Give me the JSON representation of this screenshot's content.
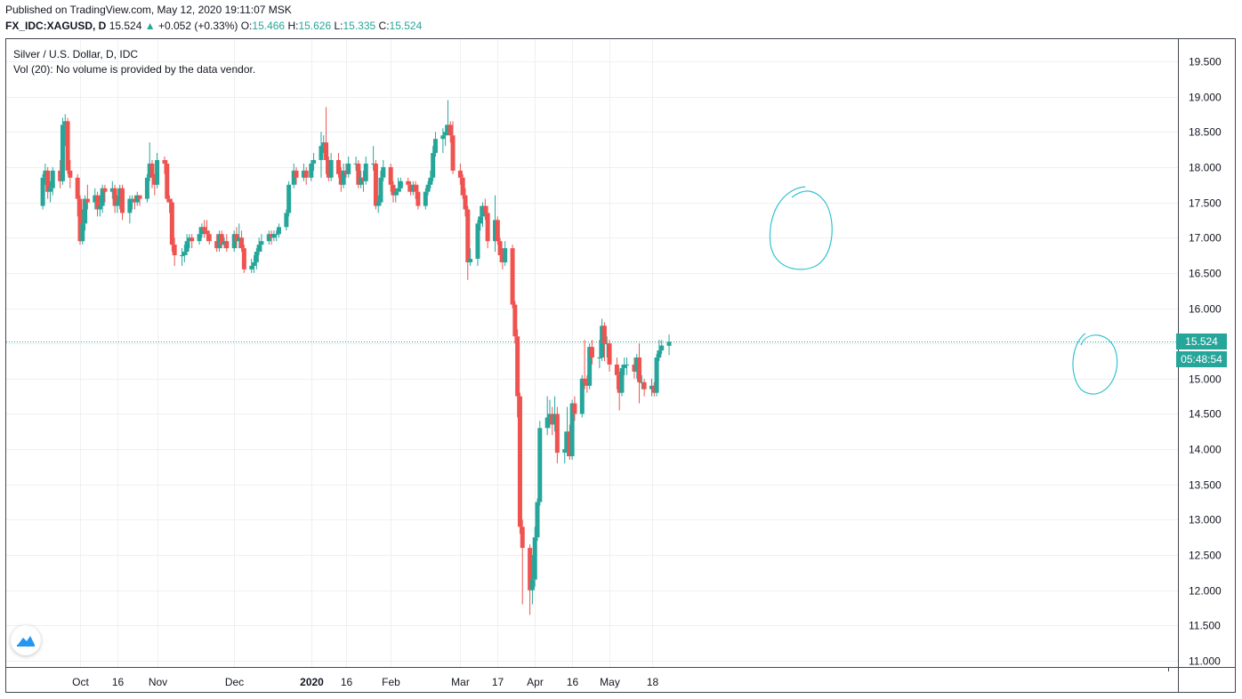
{
  "header": {
    "published": "Published on TradingView.com, May 12, 2020 19:11:07 MSK",
    "symbol": "FX_IDC:XAGUSD, D",
    "last": "15.524",
    "arrow": "▲",
    "change": "+0.052 (+0.33%)",
    "o_label": "O:",
    "o": "15.466",
    "h_label": "H:",
    "h": "15.626",
    "l_label": "L:",
    "l": "15.335",
    "c_label": "C:",
    "c": "15.524"
  },
  "legend": {
    "title": "Silver / U.S. Dollar, D, IDC",
    "volume_note": "Vol (20): No volume is provided by the data vendor."
  },
  "price_label": "15.524",
  "countdown_label": "05:48:54",
  "colors": {
    "up": "#26a69a",
    "down": "#ef5350",
    "grid": "#eef0f3",
    "annotation": "#34c3d0"
  },
  "chart_data": {
    "type": "candlestick",
    "title": "Silver / U.S. Dollar, D, IDC",
    "ylim": [
      11.0,
      19.7
    ],
    "y_ticks": [
      "19.500",
      "19.000",
      "18.500",
      "18.000",
      "17.500",
      "17.000",
      "16.500",
      "16.000",
      "15.500",
      "15.000",
      "14.500",
      "14.000",
      "13.500",
      "13.000",
      "12.500",
      "12.000",
      "11.500",
      "11.000"
    ],
    "x_ticks": [
      {
        "label": "Oct",
        "date": "2019-10-01",
        "bold": false
      },
      {
        "label": "16",
        "date": "2019-10-16",
        "bold": false
      },
      {
        "label": "Nov",
        "date": "2019-11-01",
        "bold": false
      },
      {
        "label": "Dec",
        "date": "2019-12-02",
        "bold": false
      },
      {
        "label": "2020",
        "date": "2020-01-02",
        "bold": true
      },
      {
        "label": "16",
        "date": "2020-01-16",
        "bold": false
      },
      {
        "label": "Feb",
        "date": "2020-02-03",
        "bold": false
      },
      {
        "label": "Mar",
        "date": "2020-03-02",
        "bold": false
      },
      {
        "label": "17",
        "date": "2020-03-17",
        "bold": false
      },
      {
        "label": "Apr",
        "date": "2020-04-01",
        "bold": false
      },
      {
        "label": "16",
        "date": "2020-04-16",
        "bold": false
      },
      {
        "label": "May",
        "date": "2020-05-01",
        "bold": false
      },
      {
        "label": "18",
        "date": "2020-05-18",
        "bold": false
      }
    ],
    "last_price": 15.524,
    "candles": [
      [
        "2019-09-16",
        17.45,
        17.85,
        17.4,
        17.9
      ],
      [
        "2019-09-17",
        17.85,
        17.95,
        17.75,
        18.05
      ],
      [
        "2019-09-18",
        17.95,
        17.65,
        17.55,
        18.0
      ],
      [
        "2019-09-19",
        17.65,
        17.7,
        17.5,
        17.8
      ],
      [
        "2019-09-20",
        17.7,
        17.95,
        17.6,
        18.0
      ],
      [
        "2019-09-23",
        17.95,
        17.8,
        17.7,
        18.1
      ],
      [
        "2019-09-24",
        17.8,
        18.6,
        17.75,
        18.7
      ],
      [
        "2019-09-25",
        18.6,
        18.65,
        18.3,
        18.75
      ],
      [
        "2019-09-26",
        18.65,
        17.95,
        17.9,
        18.7
      ],
      [
        "2019-09-27",
        17.95,
        17.85,
        17.7,
        18.1
      ],
      [
        "2019-09-30",
        17.85,
        17.55,
        17.3,
        17.9
      ],
      [
        "2019-10-01",
        17.55,
        16.95,
        16.9,
        17.6
      ],
      [
        "2019-10-02",
        16.95,
        17.2,
        16.9,
        17.4
      ],
      [
        "2019-10-03",
        17.2,
        17.55,
        17.1,
        17.6
      ],
      [
        "2019-10-04",
        17.55,
        17.5,
        17.4,
        17.75
      ],
      [
        "2019-10-07",
        17.5,
        17.6,
        17.4,
        17.7
      ],
      [
        "2019-10-08",
        17.6,
        17.4,
        17.3,
        17.65
      ],
      [
        "2019-10-09",
        17.4,
        17.45,
        17.3,
        17.6
      ],
      [
        "2019-10-10",
        17.45,
        17.7,
        17.35,
        17.75
      ],
      [
        "2019-10-11",
        17.7,
        17.65,
        17.5,
        17.75
      ],
      [
        "2019-10-14",
        17.65,
        17.7,
        17.55,
        17.8
      ],
      [
        "2019-10-15",
        17.7,
        17.45,
        17.35,
        17.75
      ],
      [
        "2019-10-16",
        17.45,
        17.5,
        17.35,
        17.6
      ],
      [
        "2019-10-17",
        17.5,
        17.7,
        17.4,
        17.75
      ],
      [
        "2019-10-18",
        17.7,
        17.35,
        17.25,
        17.75
      ],
      [
        "2019-10-21",
        17.35,
        17.55,
        17.2,
        17.6
      ],
      [
        "2019-10-22",
        17.55,
        17.55,
        17.4,
        17.6
      ],
      [
        "2019-10-23",
        17.55,
        17.5,
        17.4,
        17.6
      ],
      [
        "2019-10-24",
        17.5,
        17.6,
        17.45,
        17.65
      ],
      [
        "2019-10-25",
        17.6,
        17.55,
        17.45,
        17.6
      ],
      [
        "2019-10-28",
        17.55,
        17.85,
        17.5,
        17.9
      ],
      [
        "2019-10-29",
        17.85,
        18.05,
        17.8,
        18.35
      ],
      [
        "2019-10-30",
        18.05,
        17.85,
        17.7,
        18.1
      ],
      [
        "2019-10-31",
        17.85,
        17.75,
        17.6,
        17.9
      ],
      [
        "2019-11-01",
        17.75,
        18.1,
        17.7,
        18.2
      ],
      [
        "2019-11-04",
        18.1,
        18.05,
        17.9,
        18.15
      ],
      [
        "2019-11-05",
        18.05,
        17.55,
        17.5,
        18.1
      ],
      [
        "2019-11-06",
        17.55,
        17.5,
        17.35,
        17.6
      ],
      [
        "2019-11-07",
        17.5,
        16.9,
        16.8,
        17.55
      ],
      [
        "2019-11-08",
        16.9,
        16.75,
        16.6,
        17.0
      ],
      [
        "2019-11-11",
        16.75,
        16.75,
        16.6,
        16.85
      ],
      [
        "2019-11-12",
        16.75,
        16.8,
        16.65,
        16.9
      ],
      [
        "2019-11-13",
        16.8,
        16.95,
        16.75,
        17.05
      ],
      [
        "2019-11-14",
        16.95,
        17.0,
        16.85,
        17.05
      ],
      [
        "2019-11-15",
        17.0,
        16.95,
        16.85,
        17.05
      ],
      [
        "2019-11-18",
        16.95,
        17.05,
        16.9,
        17.15
      ],
      [
        "2019-11-19",
        17.05,
        17.15,
        17.0,
        17.2
      ],
      [
        "2019-11-20",
        17.15,
        17.1,
        17.0,
        17.25
      ],
      [
        "2019-11-21",
        17.1,
        17.05,
        16.95,
        17.25
      ],
      [
        "2019-11-22",
        17.05,
        16.95,
        16.9,
        17.1
      ],
      [
        "2019-11-25",
        16.95,
        16.85,
        16.8,
        17.05
      ],
      [
        "2019-11-26",
        16.85,
        17.05,
        16.8,
        17.1
      ],
      [
        "2019-11-27",
        17.05,
        16.9,
        16.85,
        17.1
      ],
      [
        "2019-11-28",
        16.9,
        16.95,
        16.85,
        17.0
      ],
      [
        "2019-11-29",
        16.95,
        16.85,
        16.8,
        17.05
      ],
      [
        "2019-12-02",
        16.85,
        17.05,
        16.8,
        17.1
      ],
      [
        "2019-12-03",
        17.05,
        16.95,
        16.85,
        17.15
      ],
      [
        "2019-12-04",
        16.95,
        17.0,
        16.85,
        17.2
      ],
      [
        "2019-12-05",
        17.0,
        16.85,
        16.8,
        17.1
      ],
      [
        "2019-12-06",
        16.85,
        16.55,
        16.5,
        16.9
      ],
      [
        "2019-12-09",
        16.55,
        16.6,
        16.5,
        16.7
      ],
      [
        "2019-12-10",
        16.6,
        16.65,
        16.5,
        16.75
      ],
      [
        "2019-12-11",
        16.65,
        16.8,
        16.55,
        16.85
      ],
      [
        "2019-12-12",
        16.8,
        16.9,
        16.75,
        17.0
      ],
      [
        "2019-12-13",
        16.9,
        16.95,
        16.8,
        17.05
      ],
      [
        "2019-12-16",
        16.95,
        17.05,
        16.9,
        17.1
      ],
      [
        "2019-12-17",
        17.05,
        17.0,
        16.9,
        17.1
      ],
      [
        "2019-12-18",
        17.0,
        17.05,
        16.95,
        17.1
      ],
      [
        "2019-12-19",
        17.05,
        17.05,
        16.95,
        17.1
      ],
      [
        "2019-12-20",
        17.05,
        17.15,
        17.0,
        17.2
      ],
      [
        "2019-12-23",
        17.15,
        17.35,
        17.1,
        17.4
      ],
      [
        "2019-12-24",
        17.35,
        17.75,
        17.3,
        17.8
      ],
      [
        "2019-12-26",
        17.75,
        17.95,
        17.7,
        18.05
      ],
      [
        "2019-12-27",
        17.95,
        17.85,
        17.75,
        18.0
      ],
      [
        "2019-12-30",
        17.85,
        17.95,
        17.8,
        18.05
      ],
      [
        "2019-12-31",
        17.95,
        17.85,
        17.75,
        18.0
      ],
      [
        "2020-01-02",
        17.85,
        18.05,
        17.8,
        18.1
      ],
      [
        "2020-01-03",
        18.05,
        18.1,
        17.95,
        18.2
      ],
      [
        "2020-01-06",
        18.1,
        18.3,
        17.85,
        18.5
      ],
      [
        "2020-01-07",
        18.3,
        18.35,
        18.2,
        18.45
      ],
      [
        "2020-01-08",
        18.35,
        18.1,
        17.9,
        18.85
      ],
      [
        "2020-01-09",
        18.1,
        17.85,
        17.8,
        18.15
      ],
      [
        "2020-01-10",
        17.85,
        18.1,
        17.8,
        18.2
      ],
      [
        "2020-01-13",
        18.1,
        17.9,
        17.85,
        18.2
      ],
      [
        "2020-01-14",
        17.9,
        17.75,
        17.65,
        18.0
      ],
      [
        "2020-01-15",
        17.75,
        17.95,
        17.7,
        18.05
      ],
      [
        "2020-01-16",
        17.95,
        17.9,
        17.85,
        18.05
      ],
      [
        "2020-01-17",
        17.9,
        18.05,
        17.85,
        18.15
      ],
      [
        "2020-01-20",
        18.05,
        18.05,
        17.95,
        18.15
      ],
      [
        "2020-01-21",
        18.05,
        17.75,
        17.7,
        18.1
      ],
      [
        "2020-01-22",
        17.75,
        17.85,
        17.7,
        17.95
      ],
      [
        "2020-01-23",
        17.85,
        17.8,
        17.65,
        17.95
      ],
      [
        "2020-01-24",
        17.8,
        18.05,
        17.75,
        18.15
      ],
      [
        "2020-01-27",
        18.05,
        18.05,
        17.95,
        18.3
      ],
      [
        "2020-01-28",
        18.05,
        17.45,
        17.4,
        18.1
      ],
      [
        "2020-01-29",
        17.45,
        17.5,
        17.35,
        17.6
      ],
      [
        "2020-01-30",
        17.5,
        17.85,
        17.45,
        17.95
      ],
      [
        "2020-01-31",
        17.85,
        18.0,
        17.8,
        18.1
      ],
      [
        "2020-02-03",
        18.0,
        17.75,
        17.65,
        18.05
      ],
      [
        "2020-02-04",
        17.75,
        17.6,
        17.5,
        17.8
      ],
      [
        "2020-02-05",
        17.6,
        17.65,
        17.5,
        17.7
      ],
      [
        "2020-02-06",
        17.65,
        17.7,
        17.6,
        17.85
      ],
      [
        "2020-02-07",
        17.7,
        17.8,
        17.65,
        17.85
      ],
      [
        "2020-02-10",
        17.8,
        17.75,
        17.65,
        17.85
      ],
      [
        "2020-02-11",
        17.75,
        17.65,
        17.6,
        17.8
      ],
      [
        "2020-02-12",
        17.65,
        17.75,
        17.6,
        17.8
      ],
      [
        "2020-02-13",
        17.75,
        17.65,
        17.55,
        17.8
      ],
      [
        "2020-02-14",
        17.65,
        17.45,
        17.4,
        17.75
      ],
      [
        "2020-02-17",
        17.45,
        17.65,
        17.4,
        17.7
      ],
      [
        "2020-02-18",
        17.65,
        17.75,
        17.6,
        17.8
      ],
      [
        "2020-02-19",
        17.75,
        17.85,
        17.7,
        17.95
      ],
      [
        "2020-02-20",
        17.85,
        18.2,
        17.8,
        18.3
      ],
      [
        "2020-02-21",
        18.2,
        18.4,
        18.15,
        18.5
      ],
      [
        "2020-02-24",
        18.4,
        18.45,
        18.2,
        18.55
      ],
      [
        "2020-02-25",
        18.45,
        18.5,
        18.3,
        18.6
      ],
      [
        "2020-02-26",
        18.5,
        18.6,
        18.45,
        18.95
      ],
      [
        "2020-02-27",
        18.6,
        18.45,
        18.35,
        18.65
      ],
      [
        "2020-02-28",
        18.45,
        17.95,
        17.9,
        18.65
      ],
      [
        "2020-03-02",
        17.95,
        17.85,
        17.75,
        18.05
      ],
      [
        "2020-03-03",
        17.85,
        17.6,
        17.55,
        17.9
      ],
      [
        "2020-03-04",
        17.6,
        17.4,
        17.3,
        17.7
      ],
      [
        "2020-03-05",
        17.4,
        16.65,
        16.4,
        17.45
      ],
      [
        "2020-03-06",
        16.65,
        16.7,
        16.6,
        16.85
      ],
      [
        "2020-03-09",
        16.7,
        17.2,
        16.6,
        17.25
      ],
      [
        "2020-03-10",
        17.2,
        17.3,
        17.1,
        17.45
      ],
      [
        "2020-03-11",
        17.3,
        17.45,
        17.15,
        17.5
      ],
      [
        "2020-03-12",
        17.45,
        17.35,
        17.25,
        17.55
      ],
      [
        "2020-03-13",
        17.35,
        16.95,
        16.85,
        17.45
      ],
      [
        "2020-03-16",
        16.95,
        17.25,
        16.8,
        17.6
      ],
      [
        "2020-03-17",
        17.25,
        16.95,
        16.9,
        17.3
      ],
      [
        "2020-03-18",
        16.95,
        16.75,
        16.65,
        17.0
      ],
      [
        "2020-03-19",
        16.75,
        16.65,
        16.55,
        16.85
      ],
      [
        "2020-03-20",
        16.65,
        16.85,
        16.6,
        16.95
      ],
      [
        "2020-03-23",
        16.85,
        16.05,
        16.0,
        16.9
      ],
      [
        "2020-03-24",
        16.05,
        15.6,
        15.5,
        16.1
      ],
      [
        "2020-03-25",
        15.6,
        14.75,
        14.45,
        15.7
      ],
      [
        "2020-03-26",
        14.75,
        12.9,
        12.8,
        14.8
      ],
      [
        "2020-03-27",
        12.9,
        12.6,
        11.8,
        13.0
      ],
      [
        "2020-03-30",
        12.6,
        12.0,
        11.65,
        12.65
      ],
      [
        "2020-03-31",
        12.0,
        12.15,
        11.8,
        12.5
      ],
      [
        "2020-04-01",
        12.15,
        12.75,
        12.05,
        12.9
      ],
      [
        "2020-04-02",
        12.75,
        13.25,
        12.7,
        13.3
      ],
      [
        "2020-04-03",
        13.25,
        14.3,
        13.2,
        14.4
      ],
      [
        "2020-04-06",
        14.3,
        14.45,
        14.2,
        14.75
      ],
      [
        "2020-04-07",
        14.45,
        14.5,
        14.3,
        14.7
      ],
      [
        "2020-04-08",
        14.5,
        14.35,
        14.2,
        14.6
      ],
      [
        "2020-04-09",
        14.35,
        14.5,
        14.25,
        14.75
      ],
      [
        "2020-04-10",
        14.5,
        13.95,
        13.8,
        14.6
      ],
      [
        "2020-04-13",
        13.95,
        14.0,
        13.8,
        14.25
      ],
      [
        "2020-04-14",
        14.0,
        14.25,
        13.9,
        14.6
      ],
      [
        "2020-04-15",
        14.25,
        13.9,
        13.85,
        14.35
      ],
      [
        "2020-04-16",
        13.9,
        14.65,
        13.85,
        14.7
      ],
      [
        "2020-04-17",
        14.65,
        14.5,
        14.4,
        14.75
      ],
      [
        "2020-04-20",
        14.5,
        15.0,
        14.45,
        15.05
      ],
      [
        "2020-04-21",
        15.0,
        14.95,
        14.85,
        15.55
      ],
      [
        "2020-04-22",
        14.95,
        14.9,
        14.8,
        15.05
      ],
      [
        "2020-04-23",
        14.9,
        15.45,
        14.85,
        15.5
      ],
      [
        "2020-04-24",
        15.45,
        15.3,
        15.2,
        15.55
      ],
      [
        "2020-04-27",
        15.3,
        15.3,
        15.15,
        15.55
      ],
      [
        "2020-04-28",
        15.3,
        15.75,
        15.25,
        15.85
      ],
      [
        "2020-04-29",
        15.75,
        15.5,
        15.25,
        15.8
      ],
      [
        "2020-04-30",
        15.5,
        15.5,
        15.3,
        15.6
      ],
      [
        "2020-05-01",
        15.5,
        15.2,
        15.1,
        15.55
      ],
      [
        "2020-05-04",
        15.2,
        15.05,
        14.85,
        15.3
      ],
      [
        "2020-05-05",
        15.05,
        14.8,
        14.55,
        15.1
      ],
      [
        "2020-05-06",
        14.8,
        15.15,
        14.75,
        15.2
      ],
      [
        "2020-05-07",
        15.15,
        15.2,
        15.05,
        15.3
      ],
      [
        "2020-05-08",
        15.2,
        15.2,
        15.05,
        15.3
      ],
      [
        "2020-05-11",
        15.2,
        15.1,
        15.0,
        15.3
      ],
      [
        "2020-05-12",
        15.1,
        15.3,
        15.0,
        15.35
      ],
      [
        "2020-05-13",
        15.3,
        14.95,
        14.65,
        15.5
      ],
      [
        "2020-05-14",
        14.95,
        14.95,
        14.85,
        15.05
      ],
      [
        "2020-05-15",
        14.95,
        14.85,
        14.75,
        15.0
      ],
      [
        "2020-05-18",
        14.85,
        14.9,
        14.75,
        15.0
      ],
      [
        "2020-05-19",
        14.9,
        14.8,
        14.75,
        14.95
      ],
      [
        "2020-05-20",
        14.8,
        15.3,
        14.75,
        15.35
      ],
      [
        "2020-05-21",
        15.3,
        15.4,
        15.25,
        15.55
      ],
      [
        "2020-05-22",
        15.4,
        15.47,
        15.35,
        15.55
      ],
      [
        "2020-05-25",
        15.466,
        15.524,
        15.335,
        15.626
      ]
    ]
  }
}
